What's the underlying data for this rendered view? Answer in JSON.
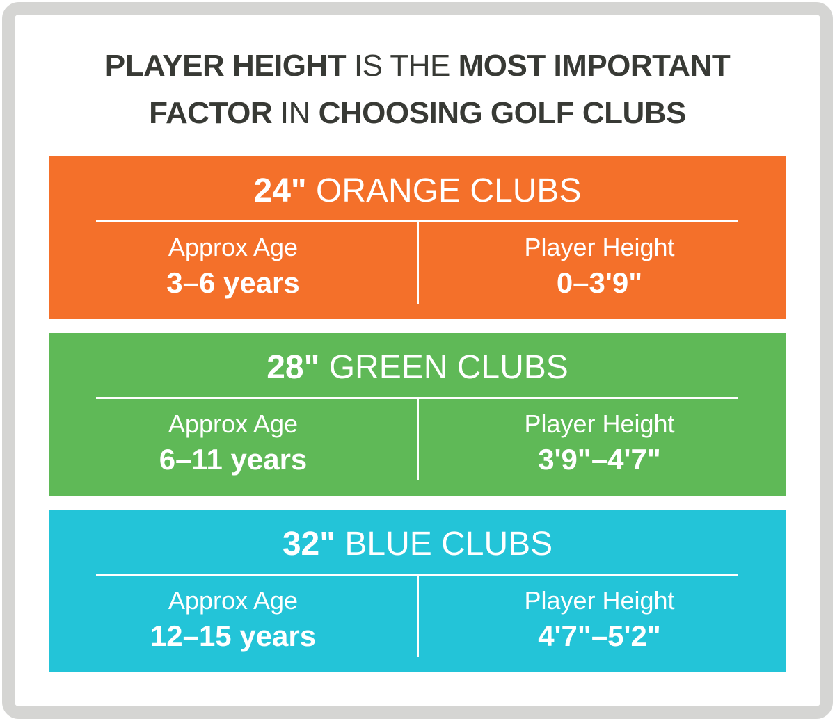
{
  "title": {
    "line1": [
      {
        "text": "PLAYER HEIGHT",
        "weight": "bold"
      },
      {
        "text": " IS THE ",
        "weight": "light"
      },
      {
        "text": "MOST IMPORTANT",
        "weight": "bold"
      }
    ],
    "line2": [
      {
        "text": "FACTOR",
        "weight": "bold"
      },
      {
        "text": " IN ",
        "weight": "light"
      },
      {
        "text": "CHOOSING GOLF CLUBS",
        "weight": "bold"
      }
    ]
  },
  "colors": {
    "frame": "#d5d5d3",
    "text": "#383a35",
    "orange": "#f4702a",
    "green": "#5fb957",
    "blue": "#23c4d8"
  },
  "bands": [
    {
      "length": "24\"",
      "name": "ORANGE CLUBS",
      "age_label": "Approx Age",
      "age": "3–6 years",
      "height_label": "Player Height",
      "height": "0–3'9\"",
      "color": "#f4702a"
    },
    {
      "length": "28\"",
      "name": "GREEN CLUBS",
      "age_label": "Approx Age",
      "age": "6–11 years",
      "height_label": "Player Height",
      "height": "3'9\"–4'7\"",
      "color": "#5fb957"
    },
    {
      "length": "32\"",
      "name": "BLUE CLUBS",
      "age_label": "Approx Age",
      "age": "12–15 years",
      "height_label": "Player Height",
      "height": "4'7\"–5'2\"",
      "color": "#23c4d8"
    }
  ]
}
